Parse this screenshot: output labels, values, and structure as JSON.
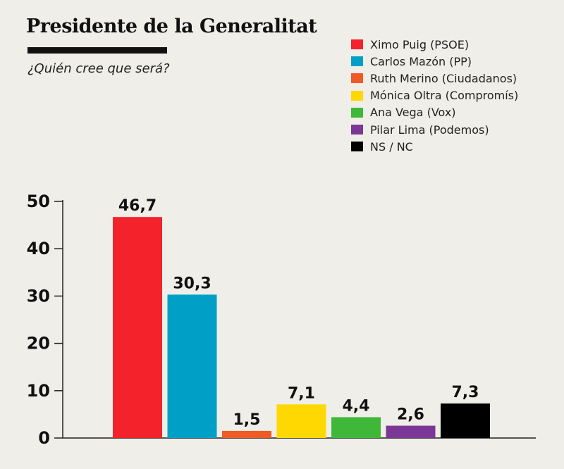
{
  "chart_data": {
    "type": "bar",
    "title": "Presidente de la Generalitat",
    "subtitle": "¿Quién cree que será?",
    "xlabel": "",
    "ylabel": "",
    "ylim": [
      0,
      50
    ],
    "yticks": [
      "0",
      "10",
      "20",
      "30",
      "40",
      "50"
    ],
    "grid": false,
    "legend_position": "top-right",
    "categories": [
      "Ximo Puig (PSOE)",
      "Carlos Mazón (PP)",
      "Ruth Merino (Ciudadanos)",
      "Mónica Oltra (Compromís)",
      "Ana Vega (Vox)",
      "Pilar Lima (Podemos)",
      "NS / NC"
    ],
    "values": [
      46.7,
      30.3,
      1.5,
      7.1,
      4.4,
      2.6,
      7.3
    ],
    "value_labels": [
      "46,7",
      "30,3",
      "1,5",
      "7,1",
      "4,4",
      "2,6",
      "7,3"
    ],
    "colors": [
      "#f4222b",
      "#00a0c6",
      "#f05a24",
      "#fed800",
      "#3fb83a",
      "#7b3795",
      "#000000"
    ]
  }
}
